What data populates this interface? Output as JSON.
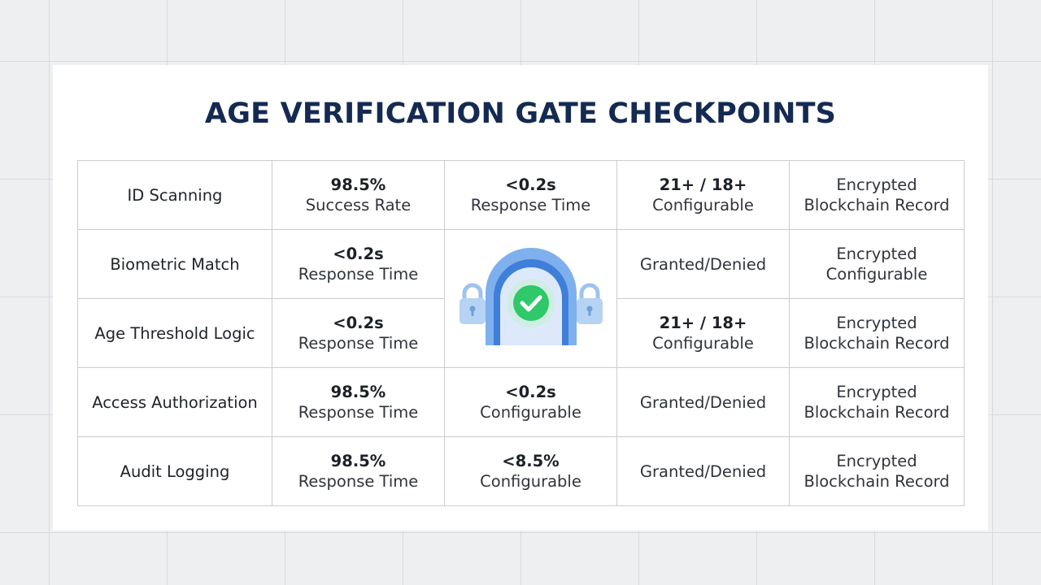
{
  "title": "AGE VERIFICATION GATE CHECKPOINTS",
  "icons": {
    "center": "gate-check-icon",
    "left_lock": "lock-icon",
    "right_lock": "lock-icon",
    "check": "check-icon"
  },
  "colors": {
    "title": "#142a52",
    "gate_outer": "#7fb0ee",
    "gate_inner": "#3f7fd9",
    "gate_fill": "#dde9fb",
    "check": "#2fc86a",
    "lock": "#9ec3ef"
  },
  "rows": [
    {
      "label": "ID Scanning",
      "c1": {
        "value": "98.5%",
        "sub": "Success Rate"
      },
      "c2": {
        "value": "<0.2s",
        "sub": "Response Time"
      },
      "c3": {
        "value": "21+ / 18+",
        "sub": "Configurable"
      },
      "c4": {
        "line1": "Encrypted",
        "line2": "Blockchain Record"
      }
    },
    {
      "label": "Biometric Match",
      "c1": {
        "value": "<0.2s",
        "sub": "Response Time"
      },
      "c3": {
        "text": "Granted/Denied"
      },
      "c4": {
        "line1": "Encrypted",
        "line2": "Configurable"
      }
    },
    {
      "label": "Age Threshold Logic",
      "c1": {
        "value": "<0.2s",
        "sub": "Response Time"
      },
      "c3": {
        "value": "21+ / 18+",
        "sub": "Configurable"
      },
      "c4": {
        "line1": "Encrypted",
        "line2": "Blockchain Record"
      }
    },
    {
      "label": "Access Authorization",
      "c1": {
        "value": "98.5%",
        "sub": "Response Time"
      },
      "c2": {
        "value": "<0.2s",
        "sub": "Configurable"
      },
      "c3": {
        "text": "Granted/Denied"
      },
      "c4": {
        "line1": "Encrypted",
        "line2": "Blockchain Record"
      }
    },
    {
      "label": "Audit Logging",
      "c1": {
        "value": "98.5%",
        "sub": "Response Time"
      },
      "c2": {
        "value": "<8.5%",
        "sub": "Configurable"
      },
      "c3": {
        "text": "Granted/Denied"
      },
      "c4": {
        "line1": "Encrypted",
        "line2": "Blockchain Record"
      }
    }
  ]
}
